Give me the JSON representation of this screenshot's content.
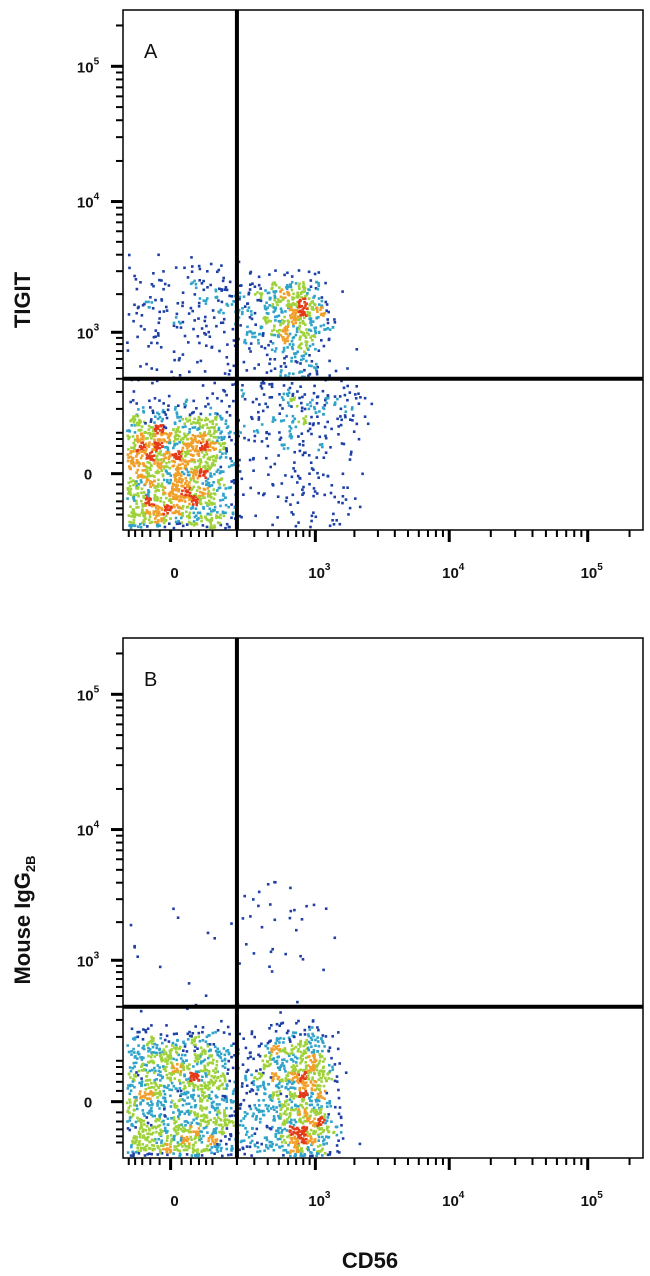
{
  "chart_data": [
    {
      "type": "scatter",
      "panel_label": "A",
      "xlabel": "CD56",
      "ylabel": {
        "main": "TIGIT",
        "sub": ""
      },
      "x_scale": "biexponential",
      "y_scale": "biexponential",
      "x_ticks": [
        {
          "value": 0,
          "base": "0",
          "exp": ""
        },
        {
          "value": 1000,
          "base": "10",
          "exp": "3"
        },
        {
          "value": 10000,
          "base": "10",
          "exp": "4"
        },
        {
          "value": 100000,
          "base": "10",
          "exp": "5"
        }
      ],
      "y_ticks": [
        {
          "value": 0,
          "base": "0",
          "exp": ""
        },
        {
          "value": 1000,
          "base": "10",
          "exp": "3"
        },
        {
          "value": 10000,
          "base": "10",
          "exp": "4"
        },
        {
          "value": 100000,
          "base": "10",
          "exp": "5"
        }
      ],
      "quadrant_gate": {
        "x": 200,
        "y": 400
      },
      "populations": [
        {
          "name": "",
          "x_center": 0,
          "y_center": 0,
          "x_spread": 80,
          "y_spread": 90,
          "events": 1500
        },
        {
          "name": "",
          "x_center": 600,
          "y_center": 1300,
          "x_spread": 300,
          "y_spread": 700,
          "events": 650
        },
        {
          "name": "",
          "x_center": 700,
          "y_center": 100,
          "x_spread": 700,
          "y_spread": 150,
          "events": 350
        },
        {
          "name": "",
          "x_center": 0,
          "y_center": 1000,
          "x_spread": 100,
          "y_spread": 1200,
          "events": 250
        }
      ],
      "grid": false,
      "legend": "none"
    },
    {
      "type": "scatter",
      "panel_label": "B",
      "xlabel": "CD56",
      "ylabel": {
        "main": "Mouse IgG",
        "sub": "2B"
      },
      "x_scale": "biexponential",
      "y_scale": "biexponential",
      "x_ticks": [
        {
          "value": 0,
          "base": "0",
          "exp": ""
        },
        {
          "value": 1000,
          "base": "10",
          "exp": "3"
        },
        {
          "value": 10000,
          "base": "10",
          "exp": "4"
        },
        {
          "value": 100000,
          "base": "10",
          "exp": "5"
        }
      ],
      "y_ticks": [
        {
          "value": 0,
          "base": "0",
          "exp": ""
        },
        {
          "value": 1000,
          "base": "10",
          "exp": "3"
        },
        {
          "value": 10000,
          "base": "10",
          "exp": "4"
        },
        {
          "value": 100000,
          "base": "10",
          "exp": "5"
        }
      ],
      "quadrant_gate": {
        "x": 200,
        "y": 400
      },
      "populations": [
        {
          "name": "",
          "x_center": 0,
          "y_center": 0,
          "x_spread": 80,
          "y_spread": 110,
          "events": 1300
        },
        {
          "name": "",
          "x_center": 650,
          "y_center": 0,
          "x_spread": 350,
          "y_spread": 110,
          "events": 1200
        },
        {
          "name": "",
          "x_center": 100,
          "y_center": 800,
          "x_spread": 500,
          "y_spread": 1500,
          "events": 120
        }
      ],
      "grid": false,
      "legend": "none"
    }
  ],
  "colors": {
    "density_low": "#1d3fa6",
    "density_mid": "#2fa3c9",
    "density_high": "#9fd23a",
    "density_peak": "#f0a02a",
    "density_max": "#e53a18",
    "gate_line": "#000000"
  }
}
